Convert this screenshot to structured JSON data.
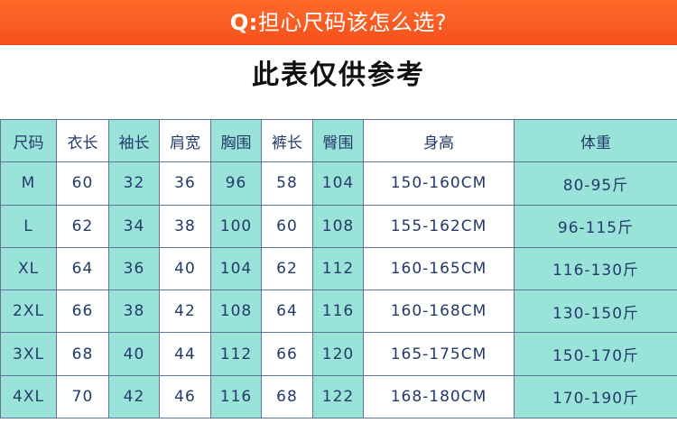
{
  "banner": {
    "q": "Q:",
    "title": "担心尺码该怎么选?"
  },
  "subtitle": "此表仅供参考",
  "table": {
    "headers": [
      "尺码",
      "衣长",
      "袖长",
      "肩宽",
      "胸围",
      "裤长",
      "臀围",
      "身高",
      "体重"
    ],
    "rows": [
      [
        "M",
        "60",
        "32",
        "36",
        "96",
        "58",
        "104",
        "150-160CM",
        "80-95斤"
      ],
      [
        "L",
        "62",
        "34",
        "38",
        "100",
        "60",
        "108",
        "155-162CM",
        "96-115斤"
      ],
      [
        "XL",
        "64",
        "36",
        "40",
        "104",
        "62",
        "112",
        "160-165CM",
        "116-130斤"
      ],
      [
        "2XL",
        "66",
        "38",
        "42",
        "108",
        "64",
        "116",
        "160-168CM",
        "130-150斤"
      ],
      [
        "3XL",
        "68",
        "40",
        "44",
        "112",
        "66",
        "120",
        "165-175CM",
        "150-170斤"
      ],
      [
        "4XL",
        "70",
        "42",
        "46",
        "116",
        "68",
        "122",
        "168-180CM",
        "170-190斤"
      ]
    ]
  },
  "colors": {
    "banner": "#f4501a",
    "teal_column": "#99e3d9",
    "table_text": "#243a6b",
    "border": "#5f7499"
  }
}
